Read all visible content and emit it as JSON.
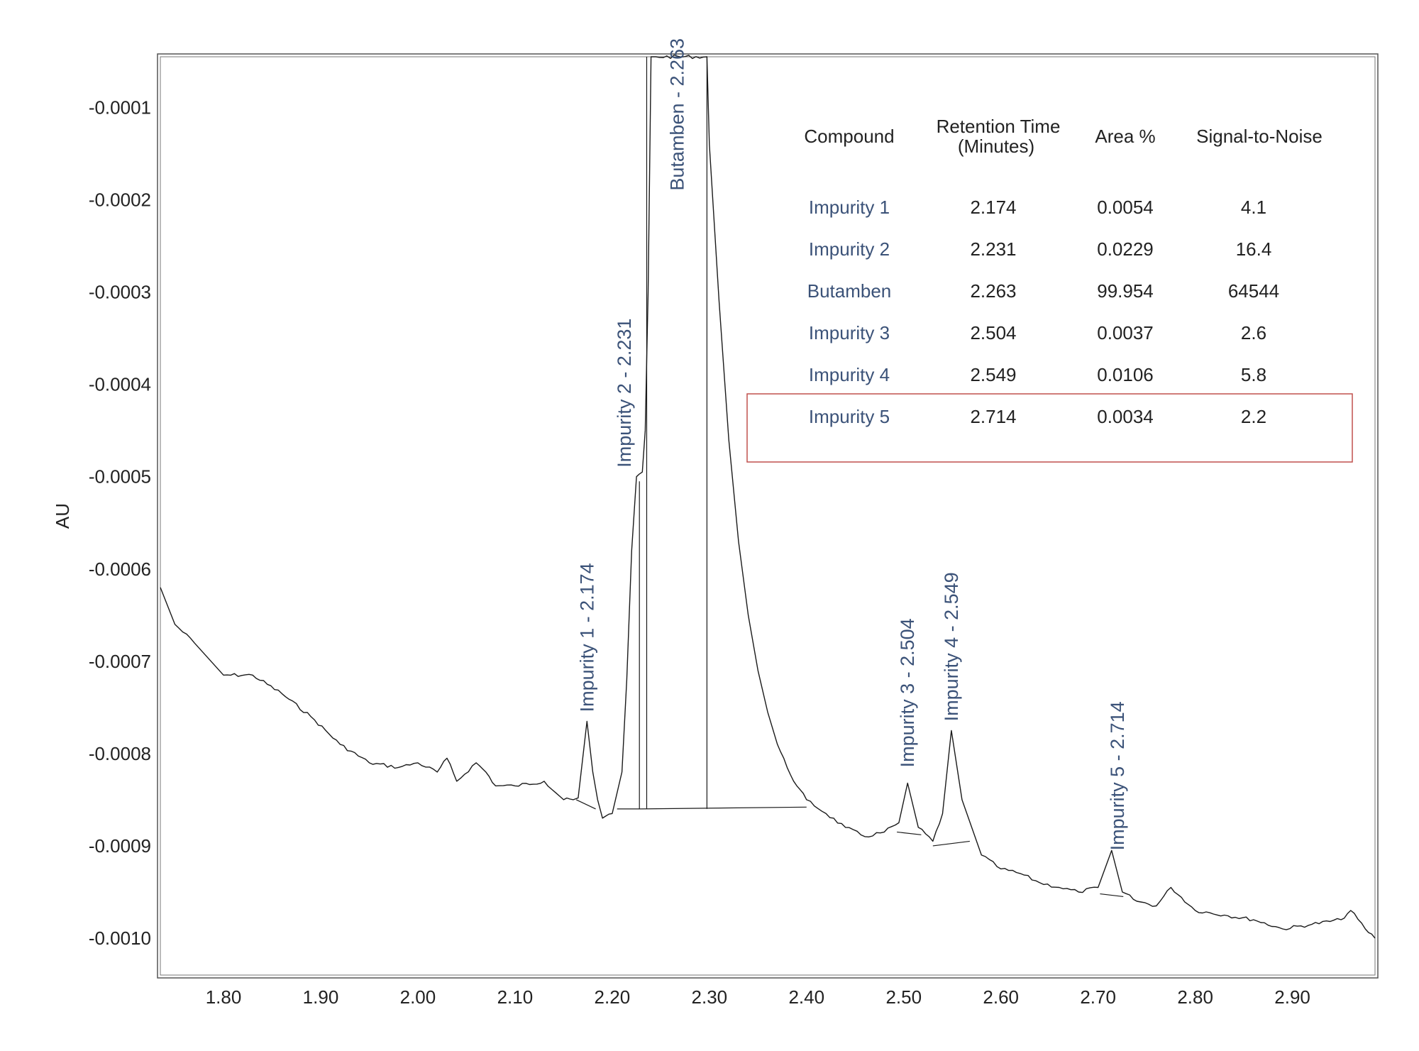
{
  "chart_data": {
    "type": "line",
    "title": "",
    "xlabel": "",
    "ylabel": "AU",
    "xlim": [
      1.735,
      2.985
    ],
    "ylim": [
      -0.00104,
      -4.5e-05
    ],
    "x_ticks": [
      "1.80",
      "1.90",
      "2.00",
      "2.10",
      "2.20",
      "2.30",
      "2.40",
      "2.50",
      "2.60",
      "2.70",
      "2.80",
      "2.90"
    ],
    "x_tick_values": [
      1.8,
      1.9,
      2.0,
      2.1,
      2.2,
      2.3,
      2.4,
      2.5,
      2.6,
      2.7,
      2.8,
      2.9
    ],
    "y_ticks": [
      "-0.0001",
      "-0.0002",
      "-0.0003",
      "-0.0004",
      "-0.0005",
      "-0.0006",
      "-0.0007",
      "-0.0008",
      "-0.0009",
      "-0.0010"
    ],
    "y_tick_values": [
      -0.0001,
      -0.0002,
      -0.0003,
      -0.0004,
      -0.0005,
      -0.0006,
      -0.0007,
      -0.0008,
      -0.0009,
      -0.001
    ],
    "grid": false,
    "series": [
      {
        "x": [
          1.735,
          1.75,
          1.77,
          1.8,
          1.83,
          1.86,
          1.89,
          1.92,
          1.95,
          1.98,
          2.0,
          2.02,
          2.03,
          2.04,
          2.06,
          2.07,
          2.08,
          2.1,
          2.13,
          2.15,
          2.16,
          2.165,
          2.174,
          2.18,
          2.185,
          2.19,
          2.2,
          2.21,
          2.215,
          2.22,
          2.225,
          2.231,
          2.234,
          2.237,
          2.24,
          2.245,
          2.2975,
          2.3,
          2.31,
          2.32,
          2.33,
          2.34,
          2.35,
          2.36,
          2.37,
          2.38,
          2.39,
          2.4,
          2.42,
          2.44,
          2.46,
          2.48,
          2.495,
          2.504,
          2.515,
          2.53,
          2.54,
          2.549,
          2.56,
          2.58,
          2.6,
          2.62,
          2.64,
          2.66,
          2.68,
          2.7,
          2.714,
          2.725,
          2.74,
          2.76,
          2.775,
          2.8,
          2.83,
          2.86,
          2.89,
          2.92,
          2.95,
          2.96,
          2.975,
          2.985
        ],
        "y": [
          -0.00062,
          -0.00066,
          -0.00068,
          -0.000715,
          -0.000715,
          -0.000735,
          -0.00076,
          -0.00079,
          -0.00081,
          -0.000815,
          -0.00081,
          -0.00082,
          -0.000805,
          -0.00083,
          -0.00081,
          -0.00082,
          -0.000835,
          -0.000835,
          -0.00083,
          -0.00085,
          -0.00085,
          -0.000848,
          -0.000765,
          -0.00082,
          -0.00085,
          -0.00087,
          -0.000865,
          -0.00082,
          -0.00072,
          -0.00058,
          -0.0005,
          -0.000495,
          -0.00045,
          -0.0003,
          -4.5e-05,
          -4.5e-05,
          -4.5e-05,
          -0.00014,
          -0.00031,
          -0.00046,
          -0.00057,
          -0.00065,
          -0.00071,
          -0.000755,
          -0.00079,
          -0.000815,
          -0.000835,
          -0.00085,
          -0.000865,
          -0.00088,
          -0.00089,
          -0.000885,
          -0.000875,
          -0.000832,
          -0.00088,
          -0.000895,
          -0.000865,
          -0.000775,
          -0.00085,
          -0.00091,
          -0.000925,
          -0.00093,
          -0.00094,
          -0.000945,
          -0.00095,
          -0.000945,
          -0.000905,
          -0.00095,
          -0.00096,
          -0.000965,
          -0.000945,
          -0.00097,
          -0.000975,
          -0.00098,
          -0.00099,
          -0.000985,
          -0.00098,
          -0.00097,
          -0.00099,
          -0.001
        ]
      }
    ],
    "baselines": [
      {
        "x": [
          2.163,
          2.183
        ],
        "y": [
          -0.00085,
          -0.00086
        ]
      },
      {
        "x": [
          2.205,
          2.23
        ],
        "y": [
          -0.00086,
          -0.00086
        ]
      },
      {
        "x": [
          2.23,
          2.4
        ],
        "y": [
          -0.00086,
          -0.000858
        ]
      },
      {
        "x": [
          2.493,
          2.518
        ],
        "y": [
          -0.000885,
          -0.000888
        ]
      },
      {
        "x": [
          2.53,
          2.568
        ],
        "y": [
          -0.0009,
          -0.000895
        ]
      },
      {
        "x": [
          2.702,
          2.726
        ],
        "y": [
          -0.000952,
          -0.000955
        ]
      }
    ],
    "peak_dividers": [
      {
        "x": 2.228,
        "y_top": -0.000505
      },
      {
        "x": 2.2355,
        "y_top": -4.5e-05
      },
      {
        "x": 2.2975,
        "y_top": -4.5e-05
      }
    ],
    "peak_labels": [
      {
        "text": "Impurity 1 - 2.174",
        "x": 2.174,
        "y_anchor": -0.000755
      },
      {
        "text": "Impurity 2 - 2.231",
        "x": 2.2125,
        "y_anchor": -0.00049
      },
      {
        "text": "Butamben - 2.263",
        "x": 2.267,
        "y_anchor": -0.00019
      },
      {
        "text": "Impurity 3 - 2.504",
        "x": 2.504,
        "y_anchor": -0.000815
      },
      {
        "text": "Impurity 4 - 2.549",
        "x": 2.549,
        "y_anchor": -0.000765
      },
      {
        "text": "Impurity 5 - 2.714",
        "x": 2.72,
        "y_anchor": -0.000905
      }
    ]
  },
  "results_table": {
    "headers": {
      "compound": "Compound",
      "retention_line1": "Retention Time",
      "retention_line2": "(Minutes)",
      "area": "Area %",
      "sn": "Signal-to-Noise"
    },
    "rows": [
      {
        "compound": "Impurity 1",
        "retention": "2.174",
        "area": "0.0054",
        "sn": "4.1"
      },
      {
        "compound": "Impurity 2",
        "retention": "2.231",
        "area": "0.0229",
        "sn": "16.4"
      },
      {
        "compound": "Butamben",
        "retention": "2.263",
        "area": "99.954",
        "sn": "64544"
      },
      {
        "compound": "Impurity 3",
        "retention": "2.504",
        "area": "0.0037",
        "sn": "2.6"
      },
      {
        "compound": "Impurity 4",
        "retention": "2.549",
        "area": "0.0106",
        "sn": "5.8"
      },
      {
        "compound": "Impurity 5",
        "retention": "2.714",
        "area": "0.0034",
        "sn": "2.2"
      }
    ],
    "highlighted_row": 5,
    "highlight_color": "#c0504d"
  },
  "colors": {
    "trace": "#1a1a1a",
    "frame": "#555555",
    "label": "#3b5278"
  }
}
